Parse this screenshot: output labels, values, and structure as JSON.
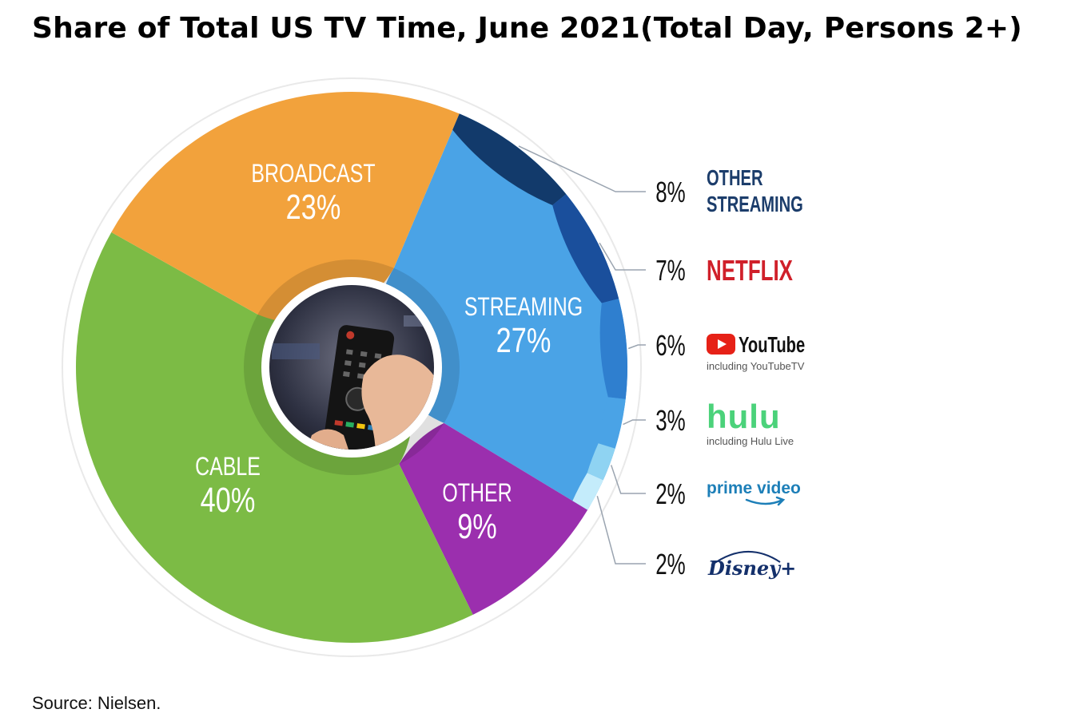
{
  "title": "Share of Total US TV Time, June 2021(Total Day, Persons 2+)",
  "source": "Source: Nielsen.",
  "center_image": "hand-holding-tv-remote",
  "chart_data": {
    "type": "pie",
    "categories": [
      "STREAMING",
      "OTHER",
      "CABLE",
      "BROADCAST"
    ],
    "values": [
      27,
      9,
      40,
      23
    ],
    "labels": [
      {
        "name": "STREAMING",
        "value": "27%"
      },
      {
        "name": "OTHER",
        "value": "9%"
      },
      {
        "name": "CABLE",
        "value": "40%"
      },
      {
        "name": "BROADCAST",
        "value": "23%"
      }
    ],
    "colors": [
      "#4aa3e6",
      "#9b2fae",
      "#7cbb45",
      "#f2a23c"
    ],
    "streaming_breakdown": {
      "order_on_ring": [
        "OTHER STREAMING",
        "NETFLIX",
        "YouTube",
        "hulu",
        "prime video",
        "Disney+"
      ],
      "items": [
        {
          "brand": "OTHER STREAMING",
          "line1": "OTHER",
          "line2": "STREAMING",
          "value": 8,
          "label": "8%",
          "color": "#123a6b",
          "text_color": "#1c3d6b"
        },
        {
          "brand": "NETFLIX",
          "line1": "NETFLIX",
          "value": 7,
          "label": "7%",
          "color": "#1a4f9c",
          "text_color": "#d0202a"
        },
        {
          "brand": "YouTube",
          "line1": "YouTube",
          "sub": "including YouTubeTV",
          "value": 6,
          "label": "6%",
          "color": "#2f7fcf",
          "text_color": "#111111",
          "icon": "youtube-play-icon"
        },
        {
          "brand": "hulu",
          "line1": "hulu",
          "sub": "including Hulu Live",
          "value": 3,
          "label": "3%",
          "color": "#4aa3e6",
          "text_color": "#4bd27a"
        },
        {
          "brand": "prime video",
          "line1": "prime video",
          "value": 2,
          "label": "2%",
          "color": "#8fd3f2",
          "text_color": "#1d7fb8",
          "icon": "amazon-smile-icon"
        },
        {
          "brand": "Disney+",
          "line1": "Disney+",
          "value": 2,
          "label": "2%",
          "color": "#c4ecfb",
          "text_color": "#14306b"
        }
      ]
    }
  }
}
